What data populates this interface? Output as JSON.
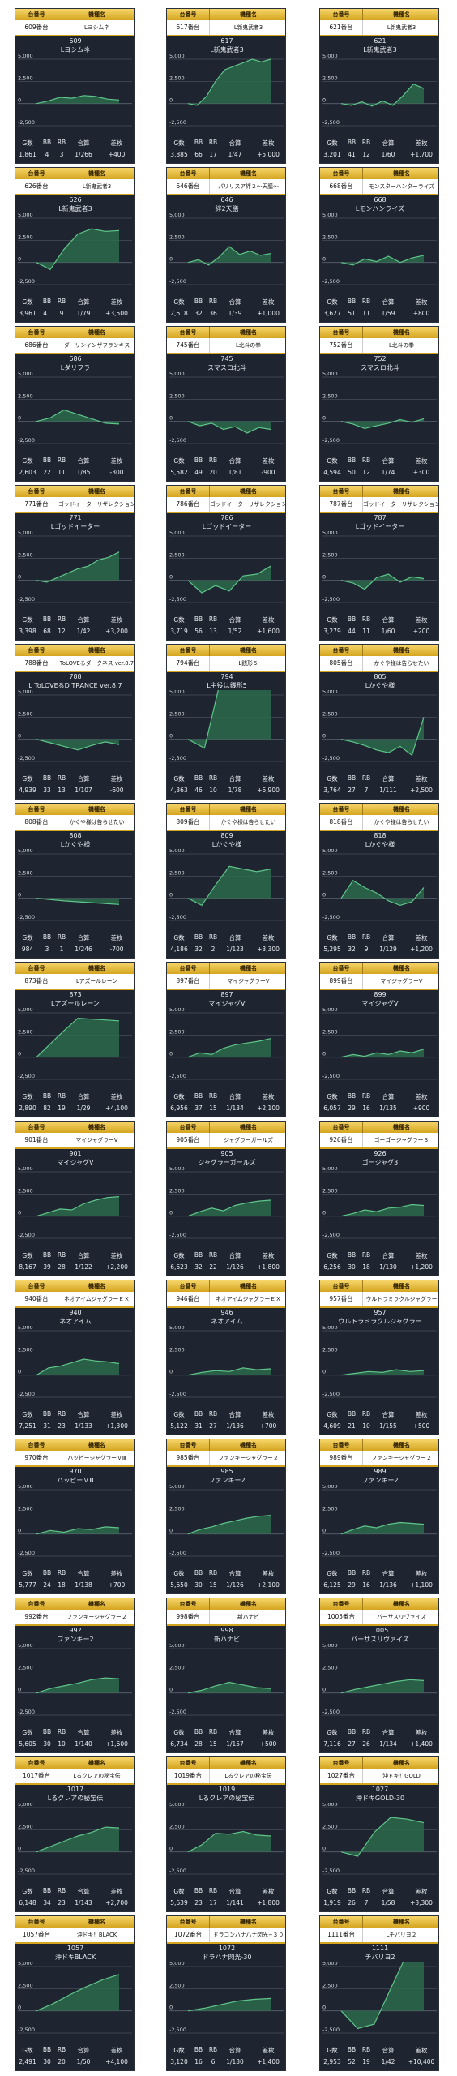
{
  "header": {
    "col_machine": "台番号",
    "col_name": "機種名"
  },
  "stat_labels": {
    "games": "G数",
    "bb": "BB",
    "rb": "RB",
    "ratio": "合算",
    "diff": "差枚"
  },
  "axis": {
    "top": "5,000",
    "upper": "2,500",
    "zero": "0",
    "lower": "-2,500"
  },
  "colors": {
    "card_bg": "#1f2530",
    "gold": "#d4a51f",
    "line": "#5fc58a",
    "fill": "#2c6a4a",
    "grid": "#5a6170"
  },
  "machines": [
    {
      "tag": "609番台",
      "name": "Lヨシムネ",
      "num": "609",
      "model": "Lヨシムネ",
      "games": "1,861",
      "bb": "4",
      "rb": "3",
      "ratio": "1/266",
      "diff": "+400",
      "trend": [
        0,
        300,
        700,
        600,
        900,
        800,
        500,
        400
      ]
    },
    {
      "tag": "617番台",
      "name": "L新鬼武者3",
      "num": "617",
      "model": "L新鬼武者3",
      "games": "3,885",
      "bb": "66",
      "rb": "17",
      "ratio": "1/47",
      "diff": "+5,000",
      "trend": [
        0,
        -200,
        800,
        2500,
        3800,
        4200,
        4600,
        5000,
        4700,
        5000
      ]
    },
    {
      "tag": "621番台",
      "name": "L新鬼武者3",
      "num": "621",
      "model": "L新鬼武者3",
      "games": "3,201",
      "bb": "41",
      "rb": "12",
      "ratio": "1/60",
      "diff": "+1,700",
      "trend": [
        0,
        -200,
        200,
        -300,
        300,
        -200,
        900,
        2200,
        1700
      ]
    },
    {
      "tag": "626番台",
      "name": "L新鬼武者3",
      "num": "626",
      "model": "L新鬼武者3",
      "games": "3,961",
      "bb": "41",
      "rb": "9",
      "ratio": "1/79",
      "diff": "+3,500",
      "trend": [
        0,
        -800,
        1500,
        3200,
        3800,
        3500,
        3600
      ]
    },
    {
      "tag": "646番台",
      "name": "パリリスア絆２〜天膳〜",
      "num": "646",
      "model": "絆2天膳",
      "games": "2,618",
      "bb": "32",
      "rb": "36",
      "ratio": "1/39",
      "diff": "+1,000",
      "trend": [
        0,
        300,
        -300,
        600,
        1800,
        900,
        1300,
        800,
        1000
      ]
    },
    {
      "tag": "668番台",
      "name": "モンスターハンターライズ",
      "num": "668",
      "model": "Lモンハンライズ",
      "games": "3,627",
      "bb": "51",
      "rb": "11",
      "ratio": "1/59",
      "diff": "+800",
      "trend": [
        0,
        -300,
        400,
        100,
        700,
        0,
        500,
        800
      ]
    },
    {
      "tag": "686番台",
      "name": "ダーリンインザフランキス",
      "num": "686",
      "model": "Lダリフラ",
      "games": "2,603",
      "bb": "22",
      "rb": "11",
      "ratio": "1/85",
      "diff": "-300",
      "trend": [
        0,
        400,
        1300,
        800,
        300,
        -200,
        -300
      ]
    },
    {
      "tag": "745番台",
      "name": "L北斗の拳",
      "num": "745",
      "model": "スマスロ北斗",
      "games": "5,582",
      "bb": "49",
      "rb": "20",
      "ratio": "1/81",
      "diff": "-900",
      "trend": [
        0,
        -500,
        -200,
        -900,
        -600,
        -1300,
        -700,
        -900
      ]
    },
    {
      "tag": "752番台",
      "name": "L北斗の拳",
      "num": "752",
      "model": "スマスロ北斗",
      "games": "4,594",
      "bb": "50",
      "rb": "12",
      "ratio": "1/74",
      "diff": "+300",
      "trend": [
        0,
        -300,
        -800,
        -500,
        -200,
        200,
        -100,
        300
      ]
    },
    {
      "tag": "771番台",
      "name": "ゴッドイーターリザレクション",
      "num": "771",
      "model": "Lゴッドイーター",
      "games": "3,398",
      "bb": "68",
      "rb": "12",
      "ratio": "1/42",
      "diff": "+3,200",
      "trend": [
        0,
        -200,
        300,
        800,
        1300,
        1600,
        2300,
        2600,
        3200
      ]
    },
    {
      "tag": "786番台",
      "name": "ゴッドイーターリザレクション",
      "num": "786",
      "model": "Lゴッドイーター",
      "games": "3,719",
      "bb": "56",
      "rb": "13",
      "ratio": "1/52",
      "diff": "+1,600",
      "trend": [
        0,
        -1400,
        -600,
        -1200,
        500,
        700,
        1600
      ]
    },
    {
      "tag": "787番台",
      "name": "ゴッドイーターリザレクション",
      "num": "787",
      "model": "Lゴッドイーター",
      "games": "3,279",
      "bb": "44",
      "rb": "11",
      "ratio": "1/60",
      "diff": "+200",
      "trend": [
        0,
        -300,
        -1000,
        300,
        700,
        -200,
        400,
        200
      ]
    },
    {
      "tag": "788番台",
      "name": "ToLOVEるダークネス ver.8.7",
      "num": "788",
      "model": "L ToLOVEるD TRANCE ver.8.7",
      "games": "4,939",
      "bb": "33",
      "rb": "13",
      "ratio": "1/107",
      "diff": "-600",
      "trend": [
        0,
        -400,
        -800,
        -1200,
        -700,
        -300,
        -600
      ]
    },
    {
      "tag": "794番台",
      "name": "L銭形５",
      "num": "794",
      "model": "L主役は銭形5",
      "games": "4,363",
      "bb": "46",
      "rb": "10",
      "ratio": "1/78",
      "diff": "+6,900",
      "trend": [
        0,
        -1000,
        6900,
        6800,
        6800,
        6900
      ]
    },
    {
      "tag": "805番台",
      "name": "かぐや様は告らせたい",
      "num": "805",
      "model": "Lかぐや様",
      "games": "3,764",
      "bb": "27",
      "rb": "7",
      "ratio": "1/111",
      "diff": "+2,500",
      "trend": [
        0,
        -300,
        -700,
        -1200,
        -1500,
        -800,
        -1800,
        2500
      ]
    },
    {
      "tag": "808番台",
      "name": "かぐや様は告らせたい",
      "num": "808",
      "model": "Lかぐや様",
      "games": "984",
      "bb": "3",
      "rb": "1",
      "ratio": "1/246",
      "diff": "-700",
      "trend": [
        0,
        -300,
        -500,
        -700
      ]
    },
    {
      "tag": "809番台",
      "name": "かぐや様は告らせたい",
      "num": "809",
      "model": "Lかぐや様",
      "games": "4,186",
      "bb": "32",
      "rb": "2",
      "ratio": "1/123",
      "diff": "+3,300",
      "trend": [
        0,
        -800,
        1500,
        3600,
        3300,
        3000,
        3300
      ]
    },
    {
      "tag": "818番台",
      "name": "かぐや様は告らせたい",
      "num": "818",
      "model": "Lかぐや様",
      "games": "5,295",
      "bb": "32",
      "rb": "9",
      "ratio": "1/129",
      "diff": "+1,200",
      "trend": [
        0,
        2000,
        1200,
        600,
        -300,
        -800,
        -400,
        1200
      ]
    },
    {
      "tag": "873番台",
      "name": "Lアズールレーン",
      "num": "873",
      "model": "Lアズールレーン",
      "games": "2,890",
      "bb": "82",
      "rb": "19",
      "ratio": "1/29",
      "diff": "+4,100",
      "trend": [
        0,
        1500,
        3000,
        4400,
        4300,
        4200,
        4100
      ]
    },
    {
      "tag": "897番台",
      "name": "マイジャグラーV",
      "num": "897",
      "model": "マイジャグV",
      "games": "6,956",
      "bb": "37",
      "rb": "15",
      "ratio": "1/134",
      "diff": "+2,100",
      "trend": [
        0,
        500,
        300,
        1000,
        1400,
        1600,
        1800,
        2100
      ]
    },
    {
      "tag": "899番台",
      "name": "マイジャグラーV",
      "num": "899",
      "model": "マイジャグV",
      "games": "6,057",
      "bb": "29",
      "rb": "16",
      "ratio": "1/135",
      "diff": "+900",
      "trend": [
        0,
        300,
        100,
        500,
        300,
        700,
        500,
        900
      ]
    },
    {
      "tag": "901番台",
      "name": "マイジャグラーV",
      "num": "901",
      "model": "マイジャグV",
      "games": "8,167",
      "bb": "39",
      "rb": "28",
      "ratio": "1/122",
      "diff": "+2,200",
      "trend": [
        0,
        400,
        800,
        700,
        1400,
        1800,
        2100,
        2200
      ]
    },
    {
      "tag": "905番台",
      "name": "ジャグラーガールズ",
      "num": "905",
      "model": "ジャグラーガールズ",
      "games": "6,623",
      "bb": "32",
      "rb": "22",
      "ratio": "1/126",
      "diff": "+1,800",
      "trend": [
        0,
        500,
        900,
        600,
        1200,
        1500,
        1700,
        1800
      ]
    },
    {
      "tag": "926番台",
      "name": "ゴーゴージャグラー３",
      "num": "926",
      "model": "ゴージャグ3",
      "games": "6,256",
      "bb": "30",
      "rb": "18",
      "ratio": "1/130",
      "diff": "+1,200",
      "trend": [
        0,
        300,
        700,
        500,
        900,
        1000,
        1300,
        1200
      ]
    },
    {
      "tag": "940番台",
      "name": "ネオアイムジャグラーＥＸ",
      "num": "940",
      "model": "ネオアイム",
      "games": "7,251",
      "bb": "31",
      "rb": "23",
      "ratio": "1/133",
      "diff": "+1,300",
      "trend": [
        0,
        800,
        1000,
        1400,
        1800,
        1600,
        1500,
        1300
      ]
    },
    {
      "tag": "946番台",
      "name": "ネオアイムジャグラーＥＸ",
      "num": "946",
      "model": "ネオアイム",
      "games": "5,122",
      "bb": "31",
      "rb": "27",
      "ratio": "1/136",
      "diff": "+700",
      "trend": [
        0,
        300,
        500,
        400,
        800,
        600,
        700
      ]
    },
    {
      "tag": "957番台",
      "name": "ウルトラミラクルジャグラー",
      "num": "957",
      "model": "ウルトラミラクルジャグラー",
      "games": "4,609",
      "bb": "21",
      "rb": "10",
      "ratio": "1/155",
      "diff": "+500",
      "trend": [
        0,
        200,
        400,
        300,
        600,
        400,
        500
      ]
    },
    {
      "tag": "970番台",
      "name": "ハッピージャグラーＶⅢ",
      "num": "970",
      "model": "ハッピーＶⅢ",
      "games": "5,777",
      "bb": "24",
      "rb": "18",
      "ratio": "1/138",
      "diff": "+700",
      "trend": [
        0,
        400,
        200,
        600,
        500,
        800,
        700
      ]
    },
    {
      "tag": "985番台",
      "name": "ファンキージャグラー２",
      "num": "985",
      "model": "ファンキー2",
      "games": "5,650",
      "bb": "30",
      "rb": "15",
      "ratio": "1/126",
      "diff": "+2,100",
      "trend": [
        0,
        500,
        800,
        1200,
        1500,
        1800,
        2000,
        2100
      ]
    },
    {
      "tag": "989番台",
      "name": "ファンキージャグラー２",
      "num": "989",
      "model": "ファンキー2",
      "games": "6,125",
      "bb": "29",
      "rb": "16",
      "ratio": "1/136",
      "diff": "+1,100",
      "trend": [
        0,
        500,
        900,
        700,
        1100,
        1300,
        1200,
        1100
      ]
    },
    {
      "tag": "992番台",
      "name": "ファンキージャグラー２",
      "num": "992",
      "model": "ファンキー2",
      "games": "5,605",
      "bb": "30",
      "rb": "10",
      "ratio": "1/140",
      "diff": "+1,600",
      "trend": [
        0,
        500,
        800,
        1100,
        1500,
        1700,
        1600
      ]
    },
    {
      "tag": "998番台",
      "name": "新ハナビ",
      "num": "998",
      "model": "新ハナビ",
      "games": "6,734",
      "bb": "28",
      "rb": "15",
      "ratio": "1/157",
      "diff": "+500",
      "trend": [
        0,
        300,
        800,
        1200,
        900,
        600,
        500
      ]
    },
    {
      "tag": "1005番台",
      "name": "バーサスリヴァイズ",
      "num": "1005",
      "model": "バーサスリヴァイズ",
      "games": "7,116",
      "bb": "27",
      "rb": "26",
      "ratio": "1/134",
      "diff": "+1,400",
      "trend": [
        0,
        400,
        700,
        1000,
        1300,
        1500,
        1400
      ]
    },
    {
      "tag": "1017番台",
      "name": "Lるクレアの秘宝伝",
      "num": "1017",
      "model": "Lるクレアの秘宝伝",
      "games": "6,148",
      "bb": "34",
      "rb": "23",
      "ratio": "1/143",
      "diff": "+2,700",
      "trend": [
        0,
        600,
        1200,
        1800,
        2200,
        2800,
        2700
      ]
    },
    {
      "tag": "1019番台",
      "name": "Lるクレアの秘宝伝",
      "num": "1019",
      "model": "Lるクレアの秘宝伝",
      "games": "5,639",
      "bb": "23",
      "rb": "17",
      "ratio": "1/141",
      "diff": "+1,800",
      "trend": [
        0,
        800,
        2100,
        2000,
        2300,
        1900,
        1800
      ]
    },
    {
      "tag": "1027番台",
      "name": "沖ドキ！GOLD",
      "num": "1027",
      "model": "沖ドキGOLD-30",
      "games": "1,919",
      "bb": "26",
      "rb": "7",
      "ratio": "1/58",
      "diff": "+3,300",
      "trend": [
        0,
        -500,
        2200,
        3900,
        3700,
        3300
      ]
    },
    {
      "tag": "1057番台",
      "name": "沖ドキ！BLACK",
      "num": "1057",
      "model": "沖ドキBLACK",
      "games": "2,491",
      "bb": "30",
      "rb": "20",
      "ratio": "1/50",
      "diff": "+4,100",
      "trend": [
        0,
        800,
        1800,
        2700,
        3500,
        4100
      ]
    },
    {
      "tag": "1072番台",
      "name": "ドラゴンハナハナ閃光−３０",
      "num": "1072",
      "model": "ドラハナ閃光-30",
      "games": "3,120",
      "bb": "16",
      "rb": "6",
      "ratio": "1/130",
      "diff": "+1,400",
      "trend": [
        0,
        300,
        700,
        1100,
        1300,
        1400
      ]
    },
    {
      "tag": "1111番台",
      "name": "Lチバリヨ２",
      "num": "1111",
      "model": "チバリヨ2",
      "games": "2,953",
      "bb": "52",
      "rb": "19",
      "ratio": "1/42",
      "diff": "+10,400",
      "trend": [
        0,
        -2000,
        -1500,
        2500,
        6500,
        10400
      ]
    }
  ]
}
